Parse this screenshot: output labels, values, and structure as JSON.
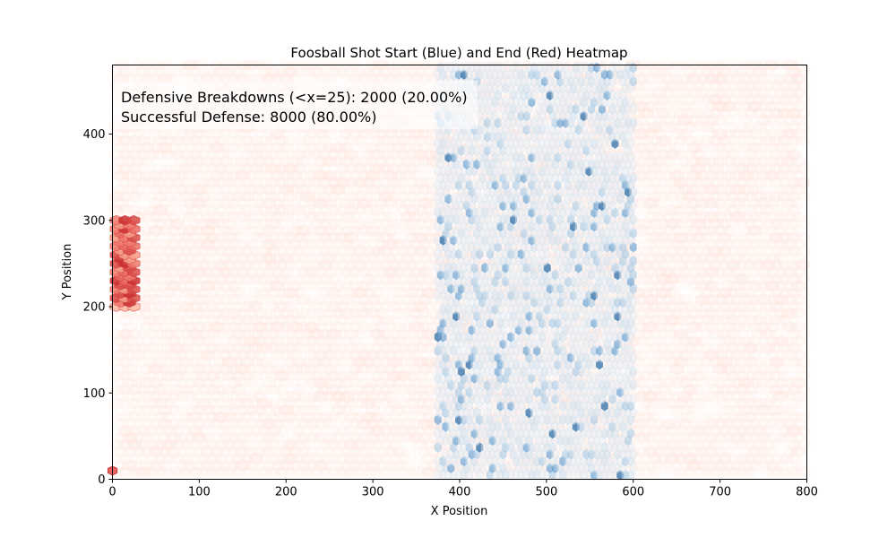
{
  "chart_data": {
    "type": "heatmap",
    "title": "Foosball Shot Start (Blue) and End (Red) Heatmap",
    "xlabel": "X Position",
    "ylabel": "Y Position",
    "xlim": [
      0,
      800
    ],
    "ylim": [
      0,
      480
    ],
    "xticks": [
      0,
      100,
      200,
      300,
      400,
      500,
      600,
      700,
      800
    ],
    "yticks": [
      0,
      100,
      200,
      300,
      400
    ],
    "grid": false,
    "annotation": {
      "line1": "Defensive Breakdowns (<x=25): 2000 (20.00%)",
      "line2": "Successful Defense: 8000 (80.00%)"
    },
    "series": [
      {
        "role": "shot start",
        "color": "#1f77b4",
        "colormap": "Blues",
        "x_range": [
          375,
          600
        ],
        "y_range": [
          0,
          480
        ],
        "intensity": "low, scattered darker cells"
      },
      {
        "role": "shot end",
        "color": "#d62728",
        "colormap": "Reds",
        "x_range": [
          0,
          800
        ],
        "y_range": [
          0,
          480
        ],
        "intensity": "very low background",
        "hotspot": {
          "x_range": [
            0,
            25
          ],
          "y_range": [
            200,
            300
          ]
        },
        "corner_cell": {
          "x": 0,
          "y": 10
        }
      }
    ]
  }
}
